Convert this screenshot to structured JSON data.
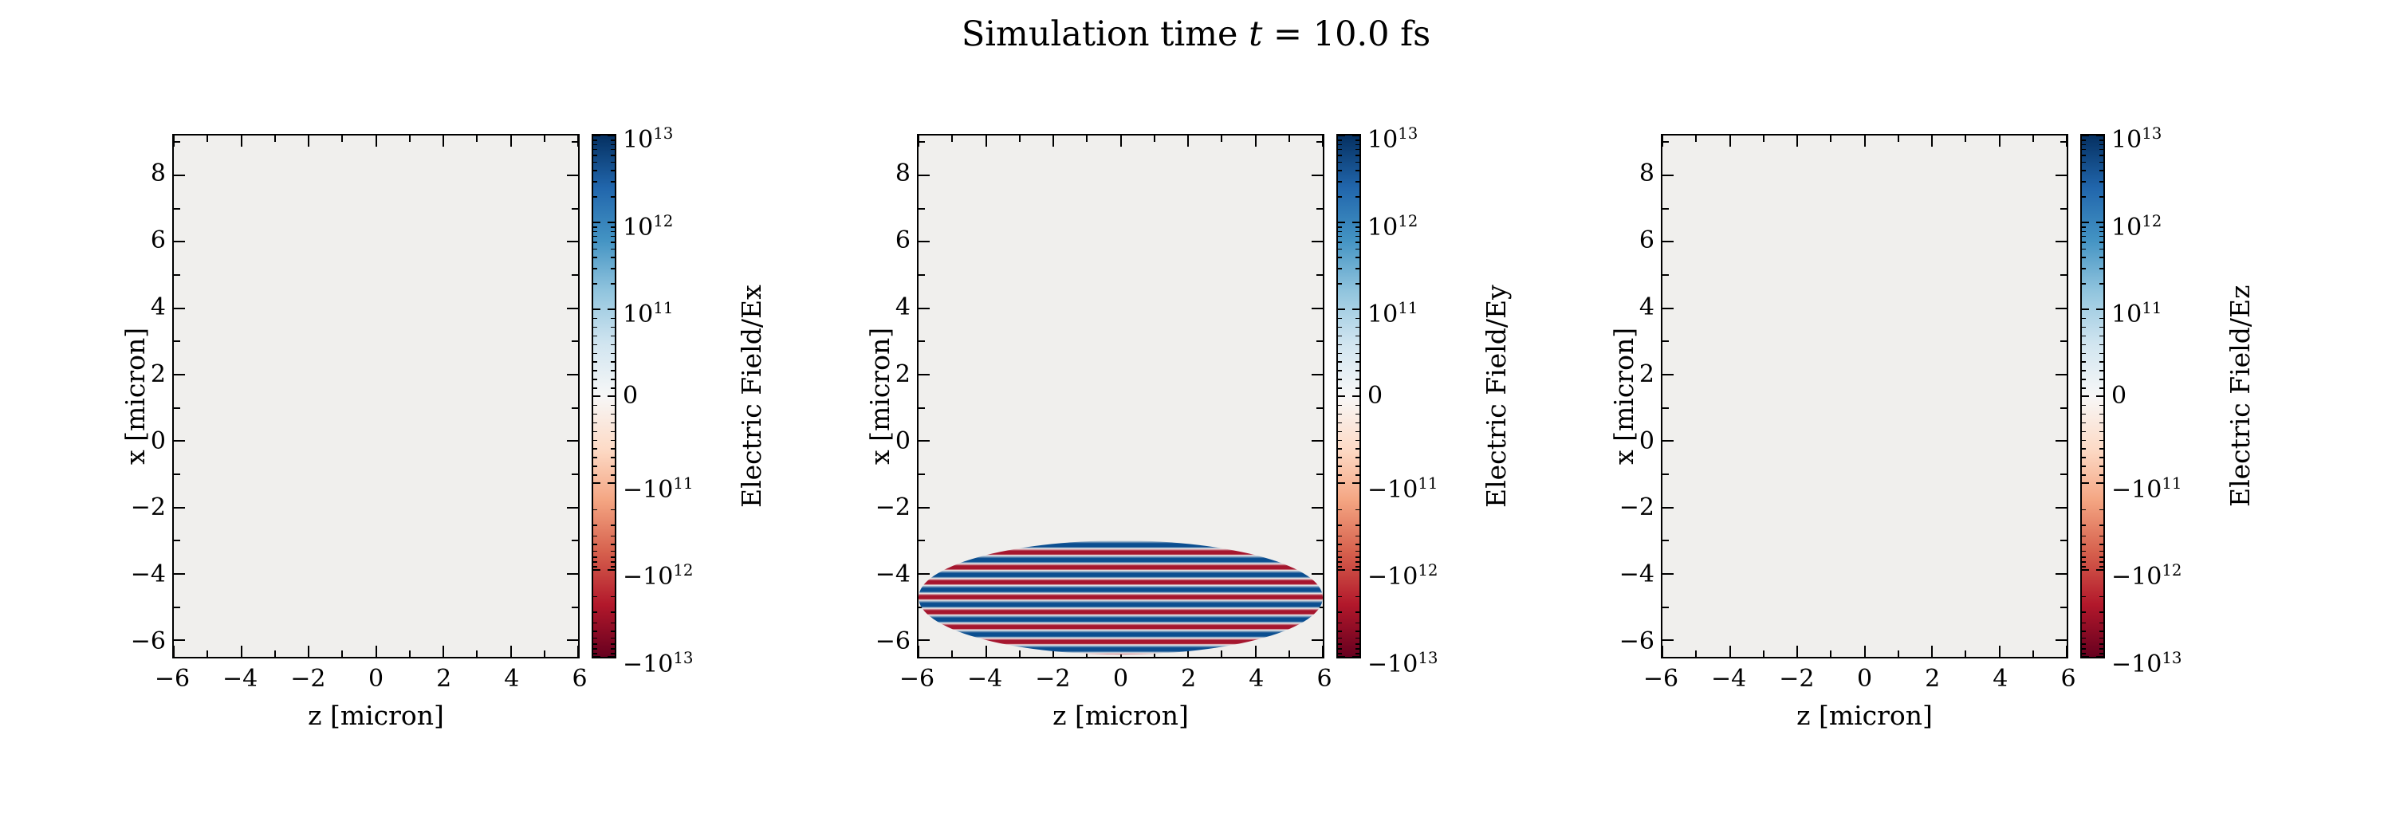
{
  "title": {
    "prefix": "Simulation time ",
    "math": "t",
    "suffix": " = 10.0 fs"
  },
  "style": {
    "plot_background": "#f0efed",
    "spine_color": "#000000",
    "tick_color": "#000000",
    "colormap": "RdBu",
    "colormap_stops": [
      "#053061 0%",
      "#2166ac 10%",
      "#4393c3 20%",
      "#92c5de 30%",
      "#d1e5f0 40%",
      "#f7f7f7 50%",
      "#fddbc7 60%",
      "#f4a582 70%",
      "#d6604d 80%",
      "#b2182b 90%",
      "#67001f 100%"
    ],
    "pulse_positive_color": "#0b4e90",
    "pulse_negative_color": "#a5162e",
    "pulse_background": "#f0efed"
  },
  "chart_data": [
    {
      "type": "heatmap",
      "name": "Ex",
      "xlabel": "z [micron]",
      "ylabel": "x [micron]",
      "colorbar_label": "Electric Field/Ex",
      "x_range": [
        -6,
        6
      ],
      "y_range": [
        -6.5,
        9.2
      ],
      "x_ticks": [
        "−6",
        "−4",
        "−2",
        "0",
        "2",
        "4",
        "6"
      ],
      "x_tick_values": [
        -6,
        -4,
        -2,
        0,
        2,
        4,
        6
      ],
      "y_ticks": [
        "8",
        "6",
        "4",
        "2",
        "0",
        "−2",
        "−4",
        "−6"
      ],
      "y_tick_values": [
        8,
        6,
        4,
        2,
        0,
        -2,
        -4,
        -6
      ],
      "colorbar_ticks": [
        "10^13",
        "10^12",
        "10^11",
        "0",
        "−10^11",
        "−10^12",
        "−10^13"
      ],
      "colorbar_scale": "symlog",
      "value_range": [
        -10000000000000.0,
        10000000000000.0
      ],
      "field_summary": "uniformly ~0, no visible structure"
    },
    {
      "type": "heatmap",
      "name": "Ey",
      "xlabel": "z [micron]",
      "ylabel": "x [micron]",
      "colorbar_label": "Electric Field/Ey",
      "x_range": [
        -6,
        6
      ],
      "y_range": [
        -6.5,
        9.2
      ],
      "x_ticks": [
        "−6",
        "−4",
        "−2",
        "0",
        "2",
        "4",
        "6"
      ],
      "x_tick_values": [
        -6,
        -4,
        -2,
        0,
        2,
        4,
        6
      ],
      "y_ticks": [
        "8",
        "6",
        "4",
        "2",
        "0",
        "−2",
        "−4",
        "−6"
      ],
      "y_tick_values": [
        8,
        6,
        4,
        2,
        0,
        -2,
        -4,
        -6
      ],
      "colorbar_ticks": [
        "10^13",
        "10^12",
        "10^11",
        "0",
        "−10^11",
        "−10^12",
        "−10^13"
      ],
      "colorbar_scale": "symlog",
      "value_range": [
        -10000000000000.0,
        10000000000000.0
      ],
      "field_summary": "laser pulse: horizontal alternating positive/negative stripes near bottom of domain",
      "pulse": {
        "z_center": 0,
        "x_center": -4.7,
        "z_half_width": 6.0,
        "x_half_width": 1.7,
        "x_top": -3.0,
        "stripe_period_micron": 0.45,
        "peak_amplitude": 10000000000000.0
      }
    },
    {
      "type": "heatmap",
      "name": "Ez",
      "xlabel": "z [micron]",
      "ylabel": "x [micron]",
      "colorbar_label": "Electric Field/Ez",
      "x_range": [
        -6,
        6
      ],
      "y_range": [
        -6.5,
        9.2
      ],
      "x_ticks": [
        "−6",
        "−4",
        "−2",
        "0",
        "2",
        "4",
        "6"
      ],
      "x_tick_values": [
        -6,
        -4,
        -2,
        0,
        2,
        4,
        6
      ],
      "y_ticks": [
        "8",
        "6",
        "4",
        "2",
        "0",
        "−2",
        "−4",
        "−6"
      ],
      "y_tick_values": [
        8,
        6,
        4,
        2,
        0,
        -2,
        -4,
        -6
      ],
      "colorbar_ticks": [
        "10^13",
        "10^12",
        "10^11",
        "0",
        "−10^11",
        "−10^12",
        "−10^13"
      ],
      "colorbar_scale": "symlog",
      "value_range": [
        -10000000000000.0,
        10000000000000.0
      ],
      "field_summary": "uniformly ~0, no visible structure"
    }
  ]
}
